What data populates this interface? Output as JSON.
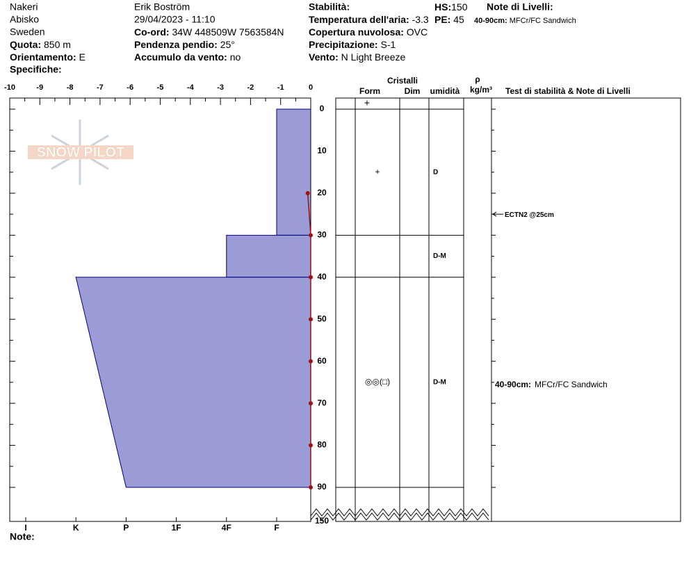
{
  "header": {
    "site": "Nakeri",
    "location": "Abisko",
    "country": "Sweden",
    "quota": {
      "label": "Quota:",
      "value": "850 m"
    },
    "orientamento": {
      "label": "Orientamento:",
      "value": "E"
    },
    "specifiche": {
      "label": "Specifiche:"
    },
    "observer": "Erik Boström",
    "datetime": "29/04/2023 - 11:10",
    "coord": {
      "label": "Co-ord:",
      "value": "34W 448509W 7563584N"
    },
    "pendenza": {
      "label": "Pendenza pendio:",
      "value": "25°"
    },
    "accumulo": {
      "label": "Accumulo da vento:",
      "value": "no"
    },
    "stabilita": {
      "label": "Stabilità:"
    },
    "temperatura": {
      "label": "Temperatura dell'aria:",
      "value": "-3.3"
    },
    "copertura": {
      "label": "Copertura nuvolosa:",
      "value": "OVC"
    },
    "precipitazione": {
      "label": "Precipitazione:",
      "value": "S-1"
    },
    "vento": {
      "label": "Vento:",
      "value": "N Light Breeze"
    },
    "hs": {
      "label": "HS:",
      "value": "150"
    },
    "pe": {
      "label": "PE:",
      "value": "45"
    },
    "note_livelli": {
      "label": "Note di Livelli:",
      "items": [
        {
          "label": "40-90cm:",
          "value": "MFCr/FC Sandwich"
        }
      ]
    },
    "logo": "SNOW PILOT"
  },
  "chart_data": {
    "type": "snowpit",
    "xlim": [
      -10,
      0
    ],
    "xticks": [
      -10,
      -9,
      -8,
      -7,
      -6,
      -5,
      -4,
      -3,
      -2,
      -1,
      0
    ],
    "ylim": [
      0,
      150
    ],
    "yticks": [
      0,
      10,
      20,
      30,
      40,
      50,
      60,
      70,
      80,
      90,
      150
    ],
    "hardness_ticks": [
      {
        "value": 6,
        "label": "I"
      },
      {
        "value": 5,
        "label": "K"
      },
      {
        "value": 4,
        "label": "P"
      },
      {
        "value": 3,
        "label": "1F"
      },
      {
        "value": 2,
        "label": "4F"
      },
      {
        "value": 1,
        "label": "F"
      }
    ],
    "color": "#9b9bd6",
    "columns": {
      "cristalli": "Cristalli",
      "form": "Form",
      "dim": "Dim",
      "umidita": "umidità",
      "rho": "ρ",
      "rho_unit": "kg/m³",
      "tests": "Test di stabilità & Note di Livelli"
    },
    "surface_form": "+",
    "layers": [
      {
        "top": 0,
        "bottom": 30,
        "hardness_top": 1,
        "hardness_bottom": 1,
        "form": "+",
        "moisture": "D"
      },
      {
        "top": 30,
        "bottom": 40,
        "hardness_top": 2,
        "hardness_bottom": 2,
        "moisture": "D-M"
      },
      {
        "top": 40,
        "bottom": 90,
        "hardness_top": 5,
        "hardness_bottom": 4,
        "form": "◎◎(□)",
        "moisture": "D-M"
      }
    ],
    "temperature": {
      "depths": [
        20,
        30,
        40,
        50,
        60,
        70,
        80,
        90
      ],
      "values": [
        -0.1,
        0,
        0,
        0,
        0,
        0,
        0,
        0
      ],
      "color": "#a01010"
    },
    "tests": [
      {
        "depth": 25,
        "label": "ECTN2 @25cm"
      }
    ],
    "notes": [
      {
        "depth": 65,
        "label": "40-90cm:",
        "text": "MFCr/FC Sandwich"
      }
    ],
    "note_label": "Note:"
  }
}
